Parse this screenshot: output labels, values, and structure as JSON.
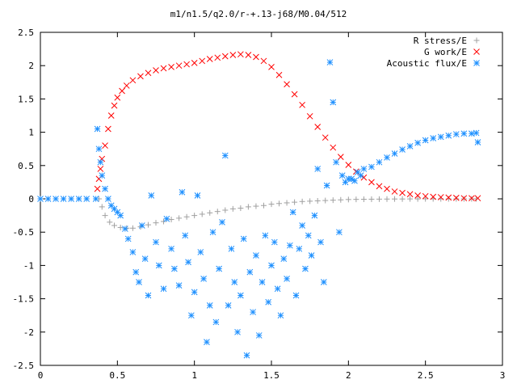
{
  "chart_data": {
    "type": "scatter",
    "title": "m1/n1.5/q2.0/r-+.13-j68/M0.04/512",
    "xlabel": "",
    "ylabel": "",
    "xlim": [
      0,
      3
    ],
    "ylim": [
      -2.5,
      2.5
    ],
    "grid": false,
    "legend_position": "top-right",
    "x_ticks": [
      "0",
      "0.5",
      "1",
      "1.5",
      "2",
      "2.5",
      "3"
    ],
    "y_ticks": [
      "2.5",
      "2",
      "1.5",
      "1",
      "0.5",
      "0",
      "-0.5",
      "-1",
      "-1.5",
      "-2",
      "-2.5"
    ],
    "x_tick_values": [
      0,
      0.5,
      1,
      1.5,
      2,
      2.5,
      3
    ],
    "y_tick_values": [
      2.5,
      2,
      1.5,
      1,
      0.5,
      0,
      -0.5,
      -1,
      -1.5,
      -2,
      -2.5
    ],
    "series": [
      {
        "name": "R stress/E",
        "marker": "plus",
        "color": "#a0a0a0",
        "points": [
          [
            0.38,
            0.0
          ],
          [
            0.4,
            -0.12
          ],
          [
            0.42,
            -0.25
          ],
          [
            0.45,
            -0.35
          ],
          [
            0.48,
            -0.4
          ],
          [
            0.52,
            -0.43
          ],
          [
            0.56,
            -0.44
          ],
          [
            0.6,
            -0.44
          ],
          [
            0.65,
            -0.42
          ],
          [
            0.7,
            -0.39
          ],
          [
            0.75,
            -0.36
          ],
          [
            0.8,
            -0.34
          ],
          [
            0.85,
            -0.31
          ],
          [
            0.9,
            -0.29
          ],
          [
            0.95,
            -0.27
          ],
          [
            1.0,
            -0.25
          ],
          [
            1.05,
            -0.23
          ],
          [
            1.1,
            -0.21
          ],
          [
            1.15,
            -0.19
          ],
          [
            1.2,
            -0.17
          ],
          [
            1.25,
            -0.15
          ],
          [
            1.3,
            -0.14
          ],
          [
            1.35,
            -0.12
          ],
          [
            1.4,
            -0.11
          ],
          [
            1.45,
            -0.1
          ],
          [
            1.5,
            -0.08
          ],
          [
            1.55,
            -0.07
          ],
          [
            1.6,
            -0.06
          ],
          [
            1.65,
            -0.05
          ],
          [
            1.7,
            -0.04
          ],
          [
            1.75,
            -0.035
          ],
          [
            1.8,
            -0.03
          ],
          [
            1.85,
            -0.025
          ],
          [
            1.9,
            -0.02
          ],
          [
            1.95,
            -0.015
          ],
          [
            2.0,
            -0.01
          ],
          [
            2.05,
            -0.008
          ],
          [
            2.1,
            -0.006
          ],
          [
            2.15,
            -0.005
          ],
          [
            2.2,
            -0.004
          ],
          [
            2.25,
            -0.003
          ],
          [
            2.3,
            -0.002
          ],
          [
            2.35,
            -0.002
          ],
          [
            2.4,
            -0.001
          ],
          [
            2.45,
            -0.001
          ],
          [
            2.5,
            0.0
          ],
          [
            2.55,
            0.0
          ],
          [
            2.6,
            0.0
          ],
          [
            2.65,
            0.0
          ],
          [
            2.7,
            0.0
          ],
          [
            2.75,
            0.0
          ],
          [
            2.8,
            0.0
          ],
          [
            2.83,
            0.0
          ]
        ]
      },
      {
        "name": "G work/E",
        "marker": "cross",
        "color": "#ff0000",
        "points": [
          [
            0.37,
            0.15
          ],
          [
            0.38,
            0.3
          ],
          [
            0.39,
            0.45
          ],
          [
            0.4,
            0.6
          ],
          [
            0.42,
            0.8
          ],
          [
            0.44,
            1.05
          ],
          [
            0.46,
            1.25
          ],
          [
            0.48,
            1.4
          ],
          [
            0.5,
            1.52
          ],
          [
            0.53,
            1.62
          ],
          [
            0.56,
            1.7
          ],
          [
            0.6,
            1.78
          ],
          [
            0.65,
            1.84
          ],
          [
            0.7,
            1.89
          ],
          [
            0.75,
            1.93
          ],
          [
            0.8,
            1.96
          ],
          [
            0.85,
            1.98
          ],
          [
            0.9,
            2.0
          ],
          [
            0.95,
            2.02
          ],
          [
            1.0,
            2.04
          ],
          [
            1.05,
            2.07
          ],
          [
            1.1,
            2.1
          ],
          [
            1.15,
            2.12
          ],
          [
            1.2,
            2.14
          ],
          [
            1.25,
            2.16
          ],
          [
            1.3,
            2.17
          ],
          [
            1.35,
            2.16
          ],
          [
            1.4,
            2.13
          ],
          [
            1.45,
            2.07
          ],
          [
            1.5,
            1.98
          ],
          [
            1.55,
            1.86
          ],
          [
            1.6,
            1.72
          ],
          [
            1.65,
            1.57
          ],
          [
            1.7,
            1.41
          ],
          [
            1.75,
            1.24
          ],
          [
            1.8,
            1.08
          ],
          [
            1.85,
            0.92
          ],
          [
            1.9,
            0.77
          ],
          [
            1.95,
            0.63
          ],
          [
            2.0,
            0.51
          ],
          [
            2.05,
            0.41
          ],
          [
            2.1,
            0.32
          ],
          [
            2.15,
            0.25
          ],
          [
            2.2,
            0.19
          ],
          [
            2.25,
            0.15
          ],
          [
            2.3,
            0.11
          ],
          [
            2.35,
            0.09
          ],
          [
            2.4,
            0.07
          ],
          [
            2.45,
            0.05
          ],
          [
            2.5,
            0.04
          ],
          [
            2.55,
            0.03
          ],
          [
            2.6,
            0.025
          ],
          [
            2.65,
            0.02
          ],
          [
            2.7,
            0.015
          ],
          [
            2.75,
            0.01
          ],
          [
            2.8,
            0.01
          ],
          [
            2.84,
            0.01
          ]
        ]
      },
      {
        "name": "Acoustic flux/E",
        "marker": "star",
        "color": "#1e90ff",
        "points": [
          [
            0.0,
            0.0
          ],
          [
            0.05,
            0.0
          ],
          [
            0.1,
            0.0
          ],
          [
            0.15,
            0.0
          ],
          [
            0.2,
            0.0
          ],
          [
            0.25,
            0.0
          ],
          [
            0.3,
            0.0
          ],
          [
            0.36,
            0.0
          ],
          [
            0.37,
            1.05
          ],
          [
            0.38,
            0.75
          ],
          [
            0.39,
            0.55
          ],
          [
            0.4,
            0.35
          ],
          [
            0.42,
            0.15
          ],
          [
            0.44,
            0.0
          ],
          [
            0.46,
            -0.1
          ],
          [
            0.48,
            -0.15
          ],
          [
            0.5,
            -0.2
          ],
          [
            0.52,
            -0.25
          ],
          [
            0.55,
            -0.45
          ],
          [
            0.57,
            -0.6
          ],
          [
            0.6,
            -0.8
          ],
          [
            0.62,
            -1.1
          ],
          [
            0.64,
            -1.25
          ],
          [
            0.66,
            -0.4
          ],
          [
            0.68,
            -0.9
          ],
          [
            0.7,
            -1.45
          ],
          [
            0.72,
            0.05
          ],
          [
            0.75,
            -0.65
          ],
          [
            0.77,
            -1.0
          ],
          [
            0.8,
            -1.35
          ],
          [
            0.82,
            -0.3
          ],
          [
            0.85,
            -0.75
          ],
          [
            0.87,
            -1.05
          ],
          [
            0.9,
            -1.3
          ],
          [
            0.92,
            0.1
          ],
          [
            0.94,
            -0.55
          ],
          [
            0.96,
            -0.95
          ],
          [
            0.98,
            -1.75
          ],
          [
            1.0,
            -1.4
          ],
          [
            1.02,
            0.05
          ],
          [
            1.04,
            -0.8
          ],
          [
            1.06,
            -1.2
          ],
          [
            1.08,
            -2.15
          ],
          [
            1.1,
            -1.6
          ],
          [
            1.12,
            -0.5
          ],
          [
            1.14,
            -1.85
          ],
          [
            1.16,
            -1.05
          ],
          [
            1.18,
            -0.35
          ],
          [
            1.2,
            0.65
          ],
          [
            1.22,
            -1.6
          ],
          [
            1.24,
            -0.75
          ],
          [
            1.26,
            -1.25
          ],
          [
            1.28,
            -2.0
          ],
          [
            1.3,
            -1.45
          ],
          [
            1.32,
            -0.6
          ],
          [
            1.34,
            -2.35
          ],
          [
            1.36,
            -1.1
          ],
          [
            1.38,
            -1.7
          ],
          [
            1.4,
            -0.85
          ],
          [
            1.42,
            -2.05
          ],
          [
            1.44,
            -1.25
          ],
          [
            1.46,
            -0.55
          ],
          [
            1.48,
            -1.55
          ],
          [
            1.5,
            -1.0
          ],
          [
            1.52,
            -0.65
          ],
          [
            1.54,
            -1.35
          ],
          [
            1.56,
            -1.75
          ],
          [
            1.58,
            -0.9
          ],
          [
            1.6,
            -1.2
          ],
          [
            1.62,
            -0.7
          ],
          [
            1.64,
            -0.2
          ],
          [
            1.66,
            -1.45
          ],
          [
            1.68,
            -0.75
          ],
          [
            1.7,
            -0.4
          ],
          [
            1.72,
            -1.05
          ],
          [
            1.74,
            -0.55
          ],
          [
            1.76,
            -0.85
          ],
          [
            1.78,
            -0.25
          ],
          [
            1.8,
            0.45
          ],
          [
            1.82,
            -0.65
          ],
          [
            1.84,
            -1.25
          ],
          [
            1.86,
            0.2
          ],
          [
            1.88,
            2.05
          ],
          [
            1.9,
            1.45
          ],
          [
            1.92,
            0.55
          ],
          [
            1.94,
            -0.5
          ],
          [
            1.96,
            0.35
          ],
          [
            1.98,
            0.25
          ],
          [
            2.0,
            0.3
          ],
          [
            2.02,
            0.3
          ],
          [
            2.04,
            0.27
          ],
          [
            2.06,
            0.4
          ],
          [
            2.08,
            0.35
          ],
          [
            2.1,
            0.45
          ],
          [
            2.15,
            0.48
          ],
          [
            2.2,
            0.55
          ],
          [
            2.25,
            0.62
          ],
          [
            2.3,
            0.68
          ],
          [
            2.35,
            0.74
          ],
          [
            2.4,
            0.79
          ],
          [
            2.45,
            0.84
          ],
          [
            2.5,
            0.88
          ],
          [
            2.55,
            0.91
          ],
          [
            2.6,
            0.93
          ],
          [
            2.65,
            0.95
          ],
          [
            2.7,
            0.97
          ],
          [
            2.75,
            0.98
          ],
          [
            2.8,
            0.98
          ],
          [
            2.83,
            0.99
          ],
          [
            2.84,
            0.85
          ]
        ]
      }
    ]
  }
}
